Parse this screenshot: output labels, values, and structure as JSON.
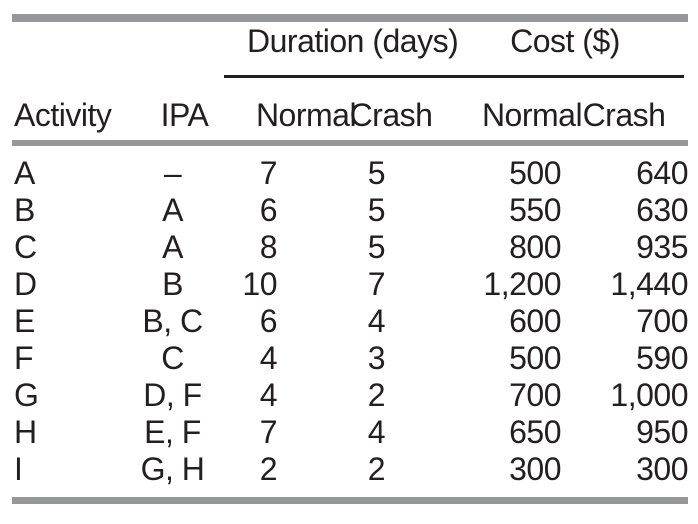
{
  "colors": {
    "bar_gray": "#95979a",
    "rule_black": "#231f20",
    "text": "#231f20",
    "background": "#ffffff"
  },
  "table": {
    "col_groups": {
      "duration": "Duration (days)",
      "cost": "Cost ($)"
    },
    "headers": {
      "activity": "Activity",
      "ipa": "IPA",
      "dur_normal": "Normal",
      "dur_crash": "Crash",
      "cost_normal": "Normal",
      "cost_crash": "Crash"
    },
    "rows": [
      {
        "activity": "A",
        "ipa": "–",
        "dur_normal": "7",
        "dur_crash": "5",
        "cost_normal": "500",
        "cost_crash": "640"
      },
      {
        "activity": "B",
        "ipa": "A",
        "dur_normal": "6",
        "dur_crash": "5",
        "cost_normal": "550",
        "cost_crash": "630"
      },
      {
        "activity": "C",
        "ipa": "A",
        "dur_normal": "8",
        "dur_crash": "5",
        "cost_normal": "800",
        "cost_crash": "935"
      },
      {
        "activity": "D",
        "ipa": "B",
        "dur_normal": "10",
        "dur_crash": "7",
        "cost_normal": "1,200",
        "cost_crash": "1,440"
      },
      {
        "activity": "E",
        "ipa": "B, C",
        "dur_normal": "6",
        "dur_crash": "4",
        "cost_normal": "600",
        "cost_crash": "700"
      },
      {
        "activity": "F",
        "ipa": "C",
        "dur_normal": "4",
        "dur_crash": "3",
        "cost_normal": "500",
        "cost_crash": "590"
      },
      {
        "activity": "G",
        "ipa": "D, F",
        "dur_normal": "4",
        "dur_crash": "2",
        "cost_normal": "700",
        "cost_crash": "1,000"
      },
      {
        "activity": "H",
        "ipa": "E, F",
        "dur_normal": "7",
        "dur_crash": "4",
        "cost_normal": "650",
        "cost_crash": "950"
      },
      {
        "activity": "I",
        "ipa": "G, H",
        "dur_normal": "2",
        "dur_crash": "2",
        "cost_normal": "300",
        "cost_crash": "300"
      }
    ]
  }
}
